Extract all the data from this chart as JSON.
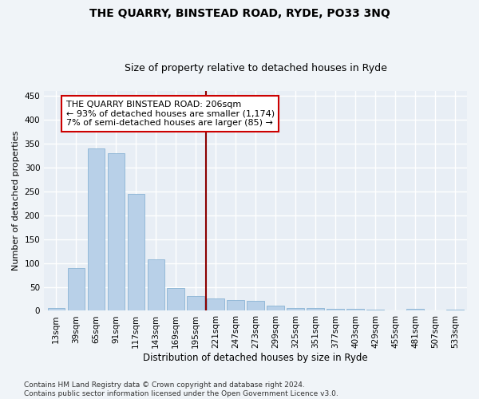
{
  "title": "THE QUARRY, BINSTEAD ROAD, RYDE, PO33 3NQ",
  "subtitle": "Size of property relative to detached houses in Ryde",
  "xlabel": "Distribution of detached houses by size in Ryde",
  "ylabel": "Number of detached properties",
  "categories": [
    "13sqm",
    "39sqm",
    "65sqm",
    "91sqm",
    "117sqm",
    "143sqm",
    "169sqm",
    "195sqm",
    "221sqm",
    "247sqm",
    "273sqm",
    "299sqm",
    "325sqm",
    "351sqm",
    "377sqm",
    "403sqm",
    "429sqm",
    "455sqm",
    "481sqm",
    "507sqm",
    "533sqm"
  ],
  "values": [
    5,
    90,
    340,
    330,
    245,
    108,
    47,
    30,
    25,
    23,
    20,
    10,
    6,
    5,
    4,
    4,
    2,
    1,
    4,
    1,
    2
  ],
  "bar_color": "#b8d0e8",
  "bar_edge_color": "#8ab4d4",
  "background_color": "#e8eef5",
  "grid_color": "#ffffff",
  "fig_background": "#f0f4f8",
  "vline_x": 7.5,
  "vline_color": "#8b0000",
  "annotation_text": "THE QUARRY BINSTEAD ROAD: 206sqm\n← 93% of detached houses are smaller (1,174)\n7% of semi-detached houses are larger (85) →",
  "annotation_box_color": "#ffffff",
  "annotation_box_edge_color": "#cc0000",
  "ylim": [
    0,
    460
  ],
  "yticks": [
    0,
    50,
    100,
    150,
    200,
    250,
    300,
    350,
    400,
    450
  ],
  "footer": "Contains HM Land Registry data © Crown copyright and database right 2024.\nContains public sector information licensed under the Open Government Licence v3.0.",
  "title_fontsize": 10,
  "subtitle_fontsize": 9,
  "xlabel_fontsize": 8.5,
  "ylabel_fontsize": 8,
  "tick_fontsize": 7.5,
  "annotation_fontsize": 8,
  "footer_fontsize": 6.5
}
